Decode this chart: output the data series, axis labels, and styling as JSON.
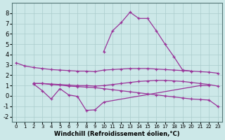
{
  "xlabel": "Windchill (Refroidissement éolien,°C)",
  "background_color": "#cce8e8",
  "grid_color": "#aacccc",
  "line_color": "#993399",
  "ylim": [
    -2.5,
    9.0
  ],
  "xlim": [
    -0.5,
    23.5
  ],
  "yticks": [
    -2,
    -1,
    0,
    1,
    2,
    3,
    4,
    5,
    6,
    7,
    8
  ],
  "xticks": [
    0,
    1,
    2,
    3,
    4,
    5,
    6,
    7,
    8,
    9,
    10,
    11,
    12,
    13,
    14,
    15,
    16,
    17,
    18,
    19,
    20,
    21,
    22,
    23
  ],
  "line_top_x": [
    0,
    1,
    2,
    3,
    4,
    5,
    6,
    7,
    8,
    9,
    10,
    11,
    12,
    13,
    14,
    15,
    16,
    17,
    18,
    19,
    20,
    21,
    22,
    23
  ],
  "line_top_y": [
    3.2,
    2.9,
    2.75,
    2.65,
    2.55,
    2.5,
    2.45,
    2.4,
    2.4,
    2.35,
    2.5,
    2.55,
    2.6,
    2.65,
    2.65,
    2.65,
    2.6,
    2.55,
    2.5,
    2.45,
    2.4,
    2.35,
    2.3,
    2.2
  ],
  "line_mid_x": [
    2,
    3,
    4,
    5,
    6,
    7,
    8,
    9,
    10,
    11,
    12,
    13,
    14,
    15,
    16,
    17,
    18,
    19,
    20,
    21,
    22,
    23
  ],
  "line_mid_y": [
    1.2,
    1.2,
    1.15,
    1.1,
    1.05,
    1.0,
    1.0,
    0.95,
    1.0,
    1.1,
    1.2,
    1.3,
    1.4,
    1.45,
    1.5,
    1.5,
    1.45,
    1.4,
    1.3,
    1.2,
    1.1,
    0.95
  ],
  "line_low_x": [
    2,
    3,
    4,
    5,
    6,
    7,
    8,
    9,
    10,
    11,
    12,
    13,
    14,
    15,
    16,
    17,
    18,
    19,
    20,
    21,
    22,
    23
  ],
  "line_low_y": [
    1.2,
    1.2,
    1.1,
    1.05,
    0.95,
    0.9,
    0.85,
    0.8,
    0.7,
    0.6,
    0.5,
    0.4,
    0.3,
    0.2,
    0.1,
    0.0,
    -0.1,
    -0.2,
    -0.3,
    -0.35,
    -0.4,
    -1.0
  ],
  "line_dip_x": [
    2,
    3,
    4,
    5,
    6,
    7,
    8,
    9,
    10,
    21,
    22
  ],
  "line_dip_y": [
    1.15,
    0.5,
    -0.3,
    0.7,
    0.1,
    -0.05,
    -1.4,
    -1.35,
    -0.6,
    1.0,
    1.0
  ],
  "line_peak_x": [
    10,
    11,
    12,
    13,
    14,
    15,
    16,
    17,
    18,
    19,
    20
  ],
  "line_peak_y": [
    4.3,
    6.3,
    7.1,
    8.1,
    7.5,
    7.5,
    6.3,
    5.0,
    3.8,
    2.5,
    2.4
  ]
}
